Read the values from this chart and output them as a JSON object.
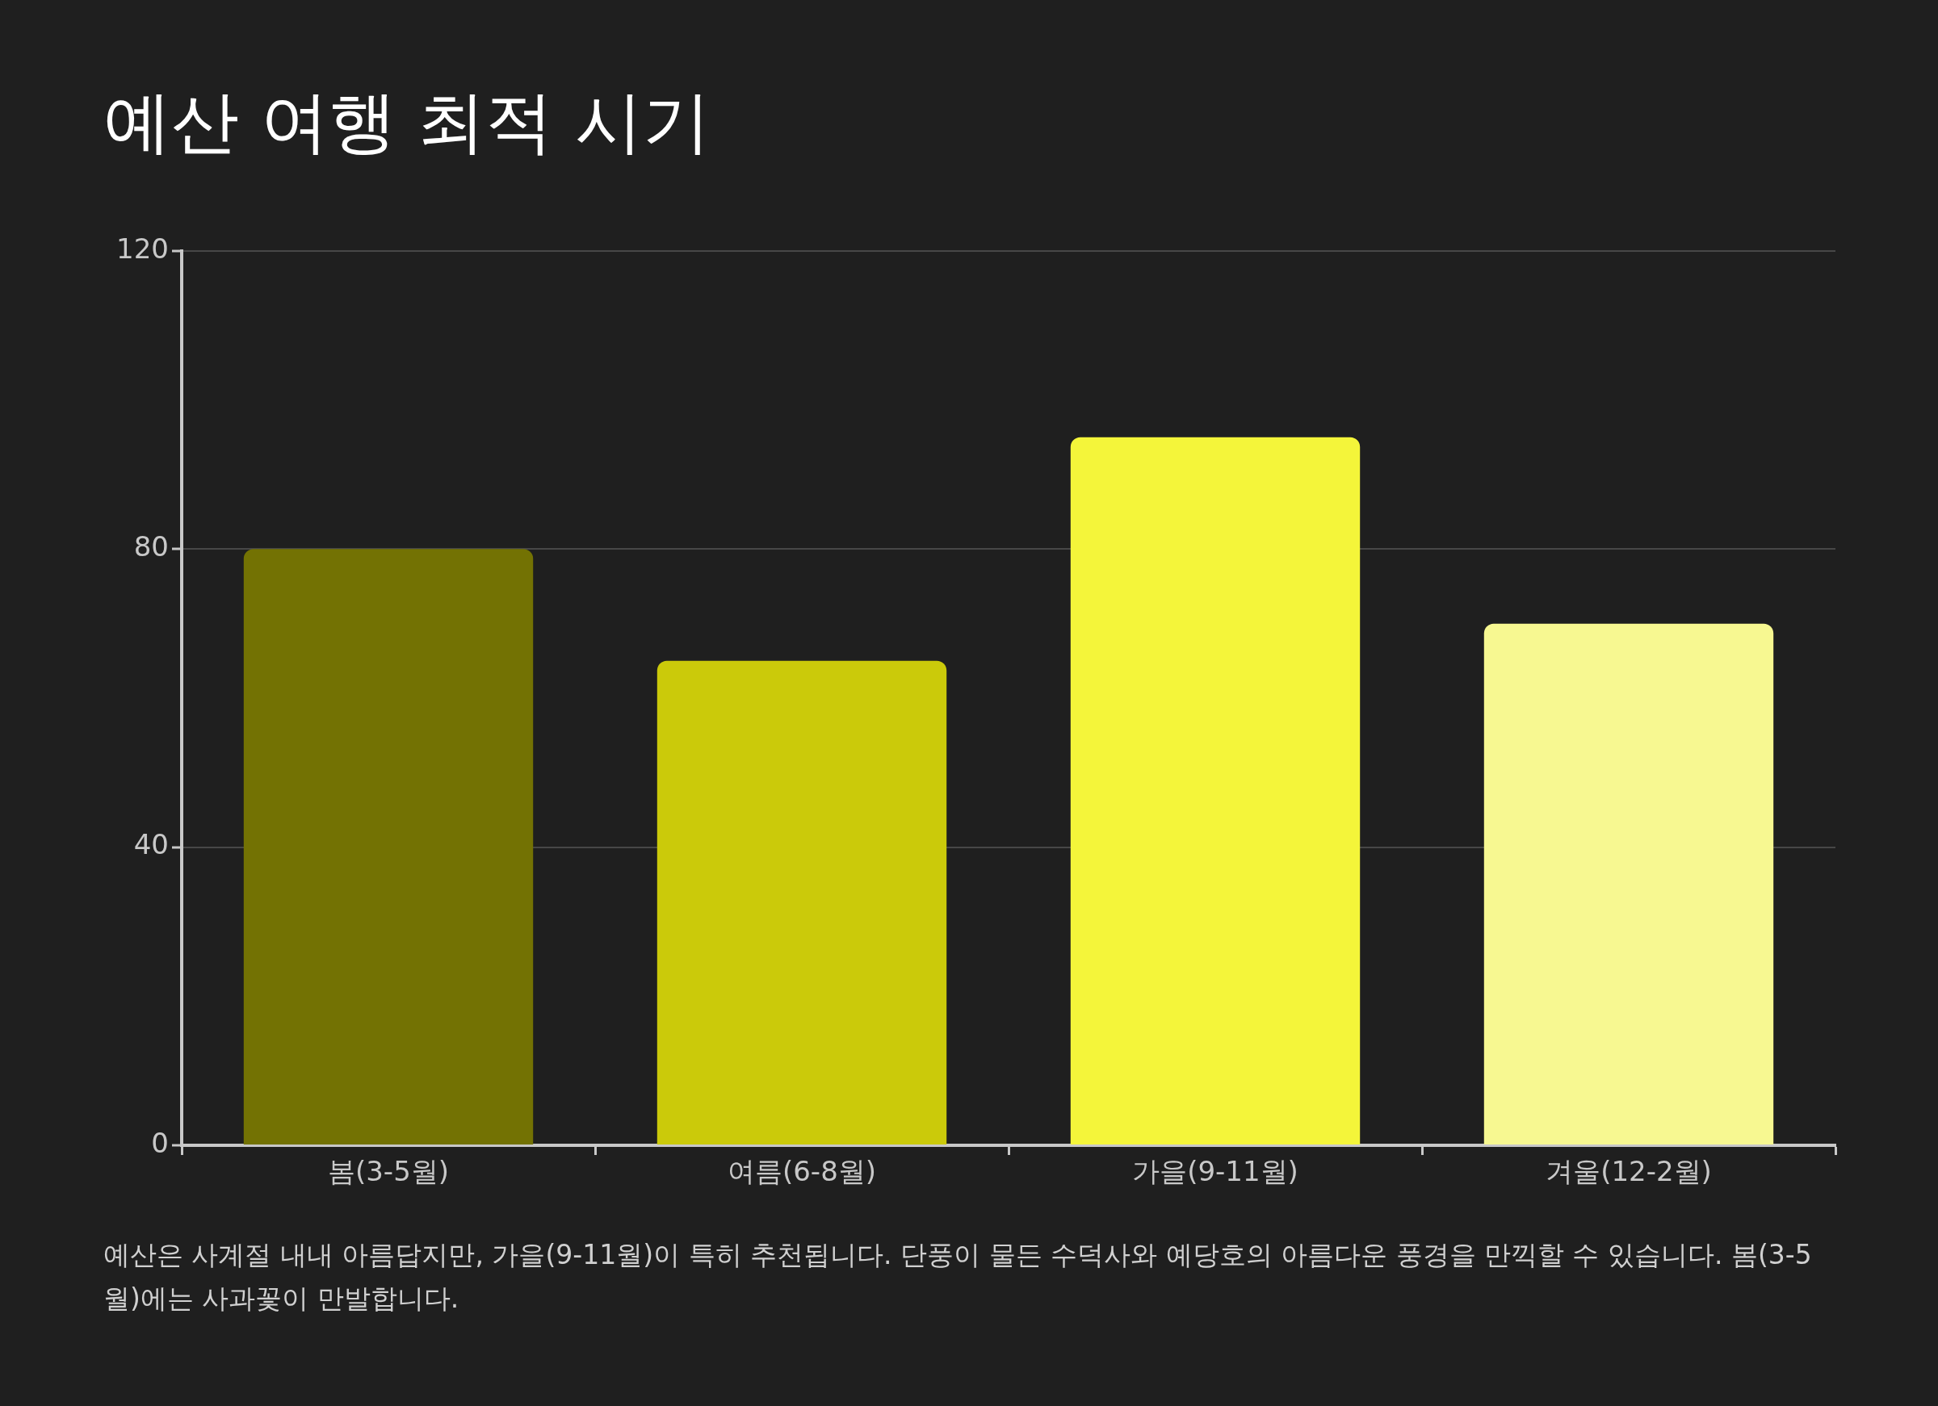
{
  "chart_data": {
    "type": "bar",
    "title": "예산 여행 최적 시기",
    "categories": [
      "봄(3-5월)",
      "여름(6-8월)",
      "가을(9-11월)",
      "겨울(12-2월)"
    ],
    "values": [
      80,
      65,
      95,
      70
    ],
    "colors": [
      "#737203",
      "#cbca0a",
      "#f4f53a",
      "#f7f891"
    ],
    "ylim": [
      0,
      120
    ],
    "yticks": [
      0,
      40,
      80,
      120
    ],
    "grid": "y",
    "legend": false,
    "annotations": [
      "예산은 사계절 내내 아름답지만, 가을(9-11월)이 특히 추천됩니다. 단풍이 물든 수덕사와 예당호의 아름다운 풍경을 만끽할 수 있습니다. 봄(3-5월)에는 사과꽃이 만발합니다."
    ]
  }
}
